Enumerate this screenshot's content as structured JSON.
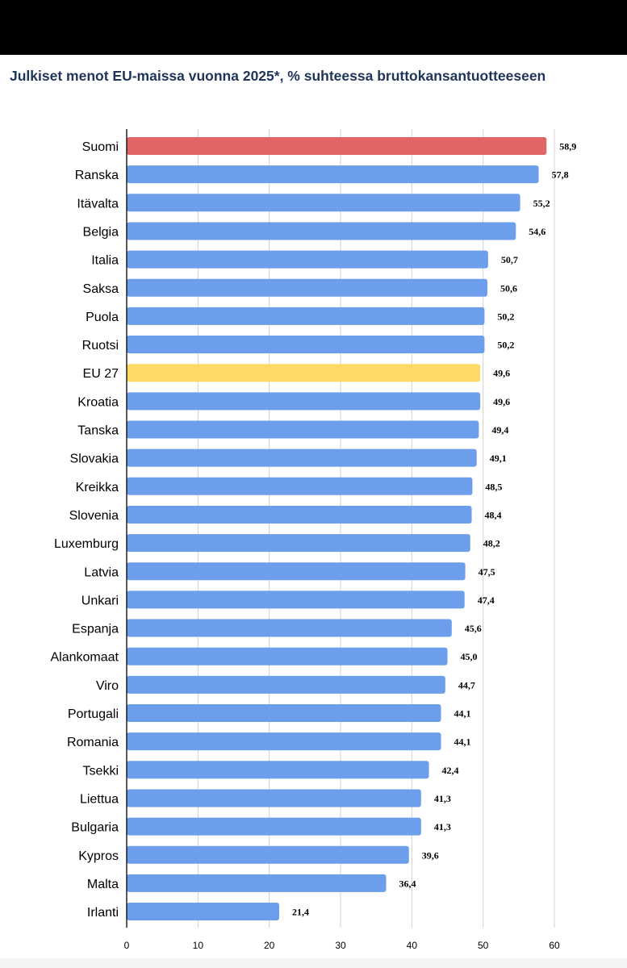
{
  "title": "Julkiset menot EU-maissa vuonna 2025*, % suhteessa bruttokansantuotteeseen",
  "colors": {
    "default_bar": "#6d9eeb",
    "highlight_finland": "#e06666",
    "highlight_eu": "#ffd966",
    "grid": "#d0d0d0",
    "axis": "#000000",
    "label_text": "#000000"
  },
  "chart_data": {
    "type": "bar",
    "orientation": "horizontal",
    "title": "Julkiset menot EU-maissa vuonna 2025*, % suhteessa bruttokansantuotteeseen",
    "xlabel": "",
    "ylabel": "",
    "xlim": [
      0,
      60
    ],
    "xticks": [
      "0",
      "10",
      "20",
      "30",
      "40",
      "50",
      "60"
    ],
    "grid": true,
    "legend": "none",
    "categories": [
      "Suomi",
      "Ranska",
      "Itävalta",
      "Belgia",
      "Italia",
      "Saksa",
      "Puola",
      "Ruotsi",
      "EU 27",
      "Kroatia",
      "Tanska",
      "Slovakia",
      "Kreikka",
      "Slovenia",
      "Luxemburg",
      "Latvia",
      "Unkari",
      "Espanja",
      "Alankomaat",
      "Viro",
      "Portugali",
      "Romania",
      "Tsekki",
      "Liettua",
      "Bulgaria",
      "Kypros",
      "Malta",
      "Irlanti"
    ],
    "values": [
      58.9,
      57.8,
      55.2,
      54.6,
      50.7,
      50.6,
      50.2,
      50.2,
      49.6,
      49.6,
      49.4,
      49.1,
      48.5,
      48.4,
      48.2,
      47.5,
      47.4,
      45.6,
      45.0,
      44.7,
      44.1,
      44.1,
      42.4,
      41.3,
      41.3,
      39.6,
      36.4,
      21.4
    ],
    "value_labels": [
      "58,9",
      "57,8",
      "55,2",
      "54,6",
      "50,7",
      "50,6",
      "50,2",
      "50,2",
      "49,6",
      "49,6",
      "49,4",
      "49,1",
      "48,5",
      "48,4",
      "48,2",
      "47,5",
      "47,4",
      "45,6",
      "45,0",
      "44,7",
      "44,1",
      "44,1",
      "42,4",
      "41,3",
      "41,3",
      "39,6",
      "36,4",
      "21,4"
    ],
    "highlights": {
      "Suomi": "highlight_finland",
      "EU 27": "highlight_eu"
    }
  }
}
